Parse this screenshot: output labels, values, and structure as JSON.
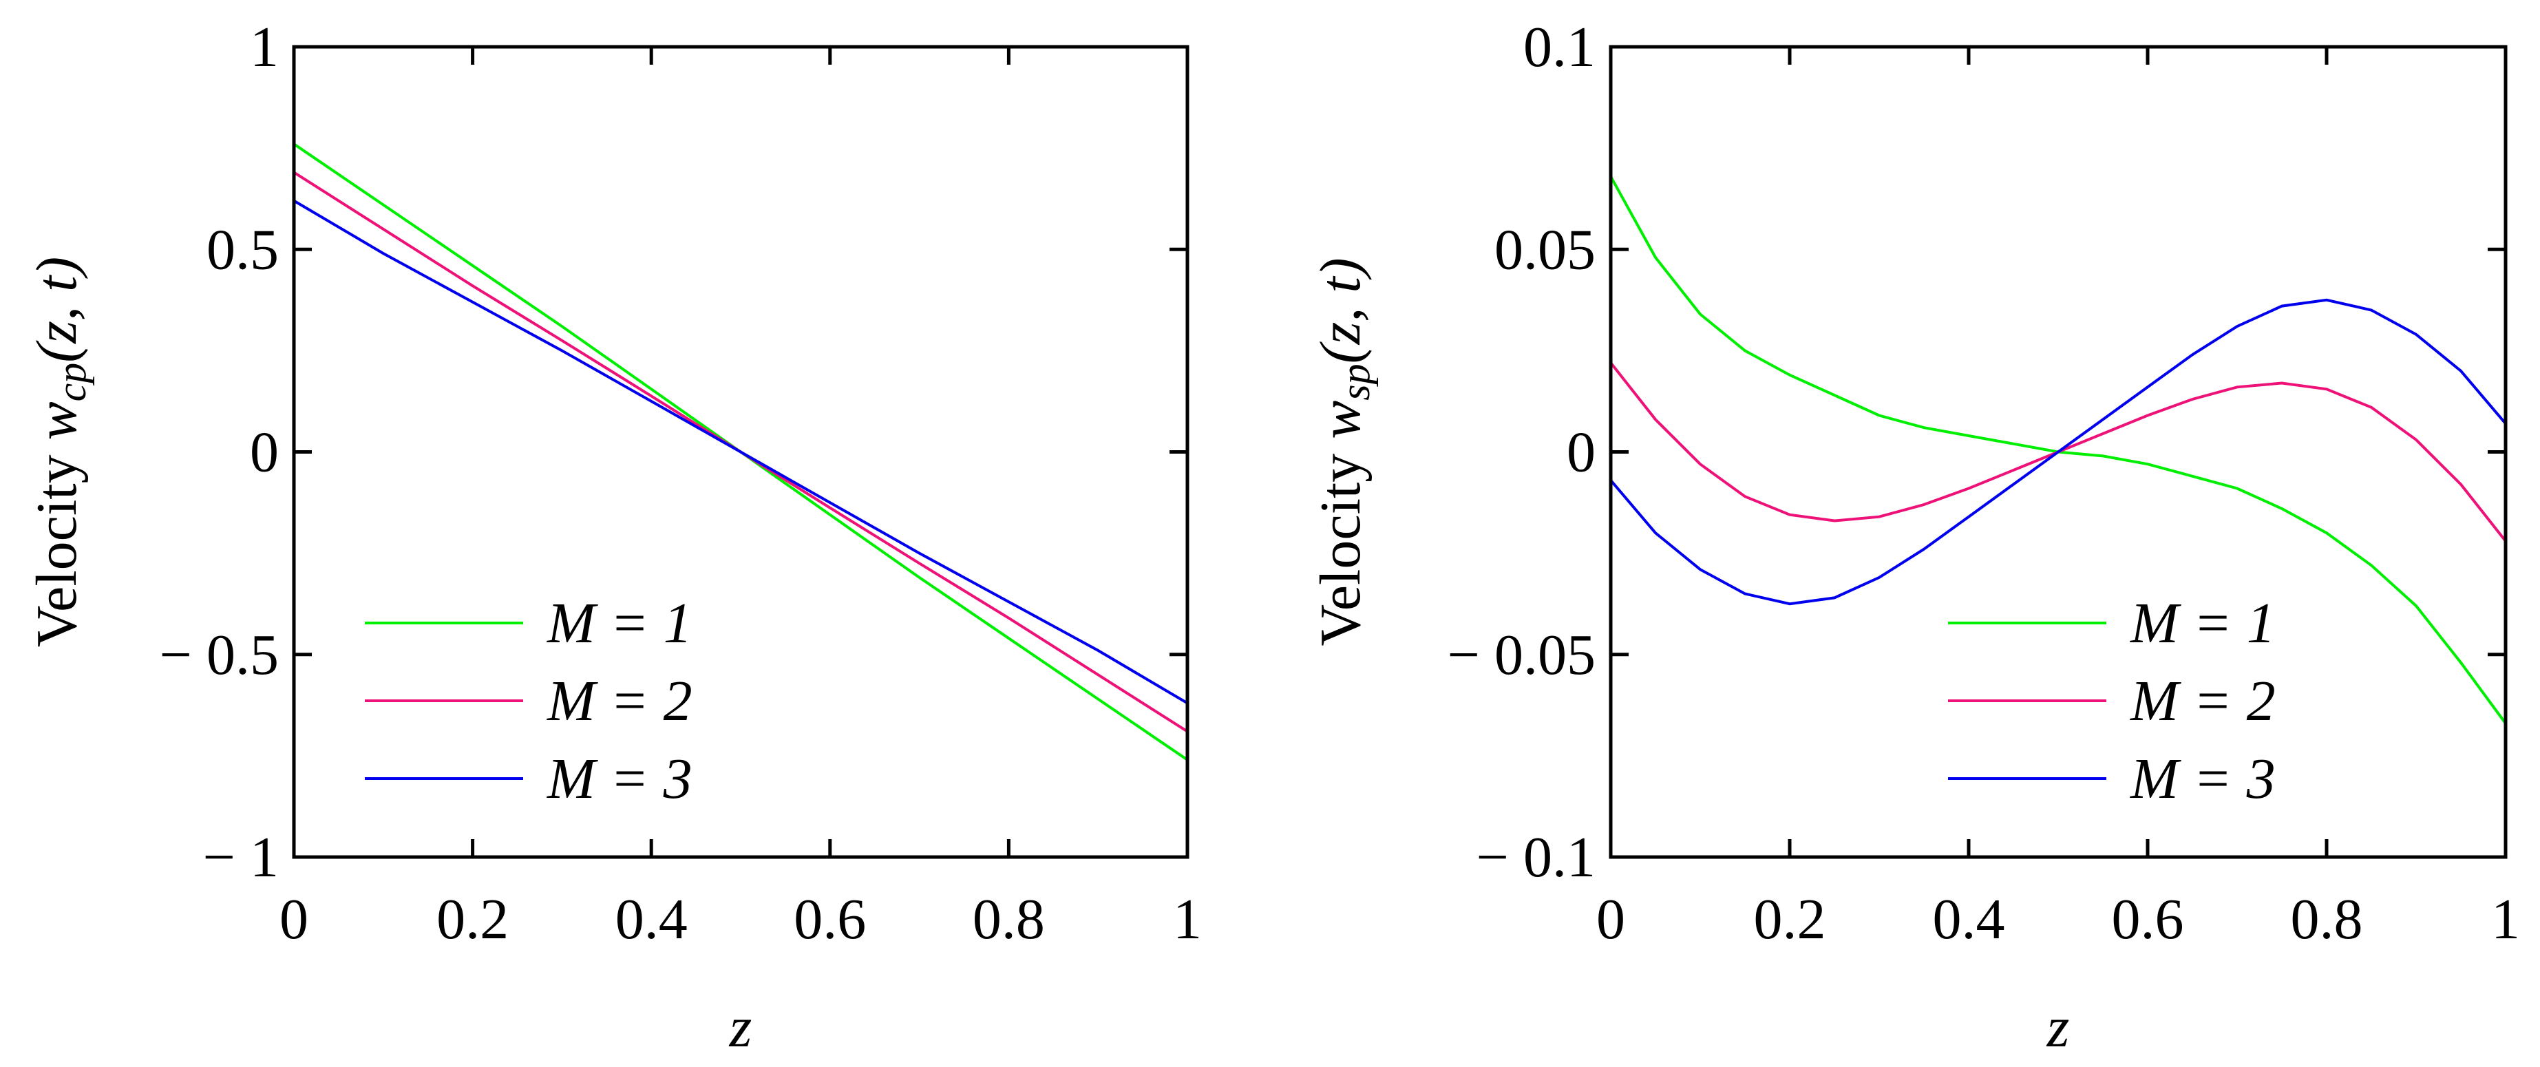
{
  "chart_data": [
    {
      "type": "line",
      "id": "left",
      "xlabel": "z",
      "ylabel_prefix": "Velocity ",
      "ylabel_var": "w",
      "ylabel_sub": "cp",
      "ylabel_args": "(z, t)",
      "xlim": [
        0,
        1
      ],
      "ylim": [
        -1,
        1
      ],
      "xticks": [
        0,
        0.2,
        0.4,
        0.6,
        0.8,
        1
      ],
      "xtick_labels": [
        "0",
        "0.2",
        "0.4",
        "0.6",
        "0.8",
        "1"
      ],
      "yticks": [
        -1,
        -0.5,
        0,
        0.5,
        1
      ],
      "ytick_labels": [
        "− 1",
        "− 0.5",
        "0",
        "0.5",
        "1"
      ],
      "legend_position": "bottom-left",
      "x": [
        0,
        0.1,
        0.2,
        0.3,
        0.4,
        0.5,
        0.6,
        0.7,
        0.8,
        0.9,
        1.0
      ],
      "series": [
        {
          "name": "M = 1",
          "color": "#00ee00",
          "values": [
            0.76,
            0.61,
            0.46,
            0.31,
            0.155,
            0.0,
            -0.155,
            -0.31,
            -0.46,
            -0.61,
            -0.76
          ]
        },
        {
          "name": "M = 2",
          "color": "#ee1177",
          "values": [
            0.69,
            0.55,
            0.41,
            0.275,
            0.138,
            0.0,
            -0.138,
            -0.275,
            -0.41,
            -0.55,
            -0.69
          ]
        },
        {
          "name": "M = 3",
          "color": "#0000ee",
          "values": [
            0.62,
            0.49,
            0.37,
            0.25,
            0.125,
            0.0,
            -0.125,
            -0.25,
            -0.37,
            -0.49,
            -0.62
          ]
        }
      ]
    },
    {
      "type": "line",
      "id": "right",
      "xlabel": "z",
      "ylabel_prefix": "Velocity ",
      "ylabel_var": "w",
      "ylabel_sub": "sp",
      "ylabel_args": "(z, t)",
      "xlim": [
        0,
        1
      ],
      "ylim": [
        -0.1,
        0.1
      ],
      "xticks": [
        0,
        0.2,
        0.4,
        0.6,
        0.8,
        1
      ],
      "xtick_labels": [
        "0",
        "0.2",
        "0.4",
        "0.6",
        "0.8",
        "1"
      ],
      "yticks": [
        -0.1,
        -0.05,
        0,
        0.05,
        0.1
      ],
      "ytick_labels": [
        "− 0.1",
        "− 0.05",
        "0",
        "0.05",
        "0.1"
      ],
      "legend_position": "bottom-right",
      "x": [
        0,
        0.05,
        0.1,
        0.15,
        0.2,
        0.25,
        0.3,
        0.35,
        0.4,
        0.45,
        0.5,
        0.55,
        0.6,
        0.65,
        0.7,
        0.75,
        0.8,
        0.85,
        0.9,
        0.95,
        1.0
      ],
      "series": [
        {
          "name": "M = 1",
          "color": "#00ee00",
          "values": [
            0.068,
            0.048,
            0.034,
            0.025,
            0.019,
            0.014,
            0.009,
            0.006,
            0.004,
            0.002,
            0.0,
            -0.001,
            -0.003,
            -0.006,
            -0.009,
            -0.014,
            -0.02,
            -0.028,
            -0.038,
            -0.052,
            -0.067
          ]
        },
        {
          "name": "M = 2",
          "color": "#ee1177",
          "values": [
            0.022,
            0.008,
            -0.003,
            -0.011,
            -0.0155,
            -0.017,
            -0.016,
            -0.013,
            -0.009,
            -0.0045,
            0.0,
            0.0045,
            0.009,
            0.013,
            0.016,
            0.017,
            0.0155,
            0.011,
            0.003,
            -0.008,
            -0.022
          ]
        },
        {
          "name": "M = 3",
          "color": "#0000ee",
          "values": [
            -0.007,
            -0.02,
            -0.029,
            -0.035,
            -0.0375,
            -0.036,
            -0.031,
            -0.024,
            -0.016,
            -0.008,
            0.0,
            0.008,
            0.016,
            0.024,
            0.031,
            0.036,
            0.0375,
            0.035,
            0.029,
            0.02,
            0.007
          ]
        }
      ]
    }
  ]
}
